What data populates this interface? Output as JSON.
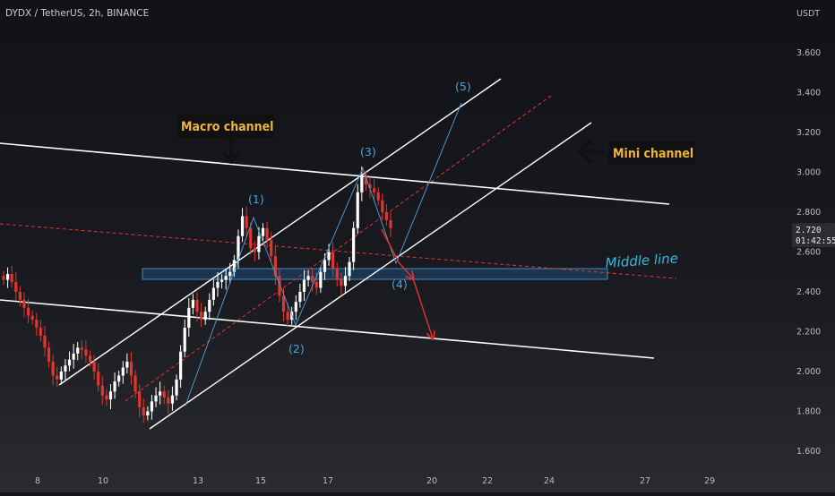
{
  "symbol": "DYDX / TetherUS, 2h, BINANCE",
  "currency": "USDT",
  "current_price": "2.720",
  "countdown": "01:42:55",
  "annotations": {
    "macro_channel": "Macro channel",
    "mini_channel": "Mini channel",
    "middle_line": "Middle line",
    "waves": [
      "(1)",
      "(2)",
      "(3)",
      "(4)",
      "(5)"
    ]
  },
  "colors": {
    "background": "#131419",
    "up_candle": "#ffffff",
    "down_candle": "#e0362c",
    "channel_line": "#ffffff",
    "wave_line": "#4aa3df",
    "dashed_line": "#e0362c",
    "label_bg": "#111111",
    "label_text": "#f0b43a",
    "zone_fill": "#1d3a57",
    "zone_stroke": "#4aa3df"
  },
  "chart_data": {
    "type": "candlestick",
    "title": "DYDX / TetherUS, 2h, BINANCE",
    "xlabel": "",
    "ylabel": "USDT",
    "x_ticks": [
      "8",
      "10",
      "13",
      "15",
      "17",
      "20",
      "22",
      "24",
      "27",
      "29"
    ],
    "y_ticks": [
      "1.600",
      "1.800",
      "2.000",
      "2.200",
      "2.400",
      "2.600",
      "2.800",
      "3.000",
      "3.200",
      "3.400",
      "3.600"
    ],
    "ylim": [
      1.55,
      3.75
    ],
    "grid": false,
    "price_series_close": [
      2.46,
      2.49,
      2.45,
      2.4,
      2.36,
      2.32,
      2.28,
      2.26,
      2.22,
      2.18,
      2.12,
      2.05,
      1.98,
      1.96,
      2.0,
      2.03,
      2.06,
      2.09,
      2.12,
      2.11,
      2.08,
      2.05,
      2.0,
      1.93,
      1.88,
      1.86,
      1.9,
      1.95,
      1.98,
      2.02,
      2.05,
      1.98,
      1.9,
      1.82,
      1.78,
      1.8,
      1.85,
      1.88,
      1.9,
      1.87,
      1.84,
      1.88,
      1.96,
      2.1,
      2.22,
      2.32,
      2.36,
      2.3,
      2.26,
      2.3,
      2.36,
      2.42,
      2.45,
      2.46,
      2.48,
      2.5,
      2.56,
      2.68,
      2.78,
      2.72,
      2.62,
      2.6,
      2.68,
      2.72,
      2.66,
      2.58,
      2.48,
      2.38,
      2.3,
      2.26,
      2.3,
      2.35,
      2.4,
      2.46,
      2.48,
      2.45,
      2.42,
      2.5,
      2.56,
      2.6,
      2.52,
      2.46,
      2.43,
      2.48,
      2.55,
      2.72,
      2.9,
      2.98,
      2.94,
      2.92,
      2.9,
      2.86,
      2.8,
      2.76,
      2.72
    ],
    "wave_points": [
      {
        "label": "(1)",
        "price": 2.8
      },
      {
        "label": "(2)",
        "price": 2.21
      },
      {
        "label": "(3)",
        "price": 3.02
      },
      {
        "label": "(4)",
        "price": 2.55
      },
      {
        "label": "(5)",
        "price": 3.35
      }
    ],
    "middle_line_zone": [
      2.46,
      2.52
    ],
    "bearish_projection_price": 2.19
  }
}
